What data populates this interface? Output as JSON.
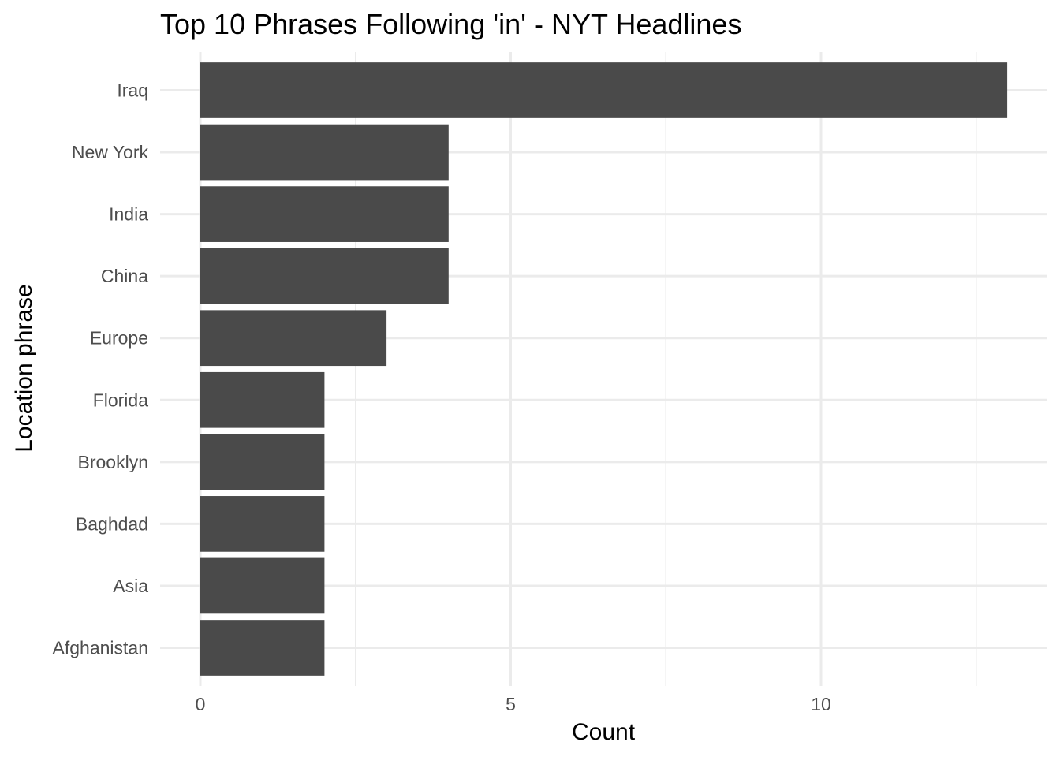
{
  "chart_data": {
    "type": "bar",
    "orientation": "horizontal",
    "title": "Top 10 Phrases Following 'in' - NYT Headlines",
    "xlabel": "Count",
    "ylabel": "Location phrase",
    "categories": [
      "Iraq",
      "New York",
      "India",
      "China",
      "Europe",
      "Florida",
      "Brooklyn",
      "Baghdad",
      "Asia",
      "Afghanistan"
    ],
    "values": [
      13,
      4,
      4,
      4,
      3,
      2,
      2,
      2,
      2,
      2
    ],
    "xlim": [
      0,
      13.65
    ],
    "x_ticks": [
      0,
      5,
      10
    ],
    "x_tick_labels": [
      "0",
      "5",
      "10"
    ],
    "grid": true,
    "bar_color": "#4a4a4a",
    "grid_color": "#ebebeb",
    "background_color": "#ffffff",
    "legend": "none"
  }
}
